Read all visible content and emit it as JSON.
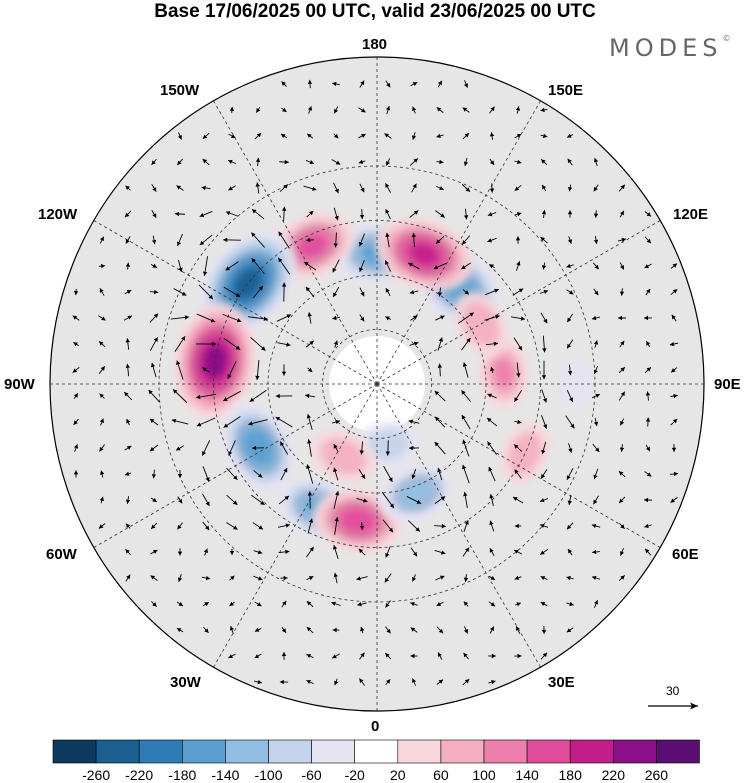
{
  "title": "Base 17/06/2025 00 UTC, valid 23/06/2025 00 UTC",
  "brand": {
    "name": "MODES",
    "mark": "©"
  },
  "longitude_labels": {
    "top": "180",
    "bottom": "0",
    "left": "90W",
    "right": "90E",
    "upper_left_1": "150W",
    "upper_left_2": "120W",
    "upper_right_1": "150E",
    "upper_right_2": "120E",
    "lower_left_1": "60W",
    "lower_left_2": "30W",
    "lower_right_1": "60E",
    "lower_right_2": "30E"
  },
  "colors": {
    "land_background": "#e6e6e6",
    "ocean": "#ffffff",
    "scale": [
      "#0c3a5e",
      "#1a5f8f",
      "#2d7cb6",
      "#5a9fd0",
      "#92bde3",
      "#c5d4ec",
      "#e6e4f2",
      "#ffffff",
      "#f8d8dc",
      "#f4b0c2",
      "#ec7fac",
      "#e04c9c",
      "#c21e8a",
      "#8b0f86",
      "#5a0e74"
    ]
  },
  "colorbar": {
    "ticks": [
      "-260",
      "-220",
      "-180",
      "-140",
      "-100",
      "-60",
      "-20",
      "20",
      "60",
      "100",
      "140",
      "180",
      "220",
      "260"
    ]
  },
  "reference_vector": {
    "value": "30"
  },
  "anomaly_centers": [
    {
      "lon": 180,
      "lat": 54,
      "value": -150
    },
    {
      "lon": 140,
      "lat": 55,
      "value": -170
    },
    {
      "lon": 160,
      "lat": 52,
      "value": 190
    },
    {
      "lon": -155,
      "lat": 48,
      "value": 150
    },
    {
      "lon": -128,
      "lat": 45,
      "value": -240
    },
    {
      "lon": -98,
      "lat": 45,
      "value": 240
    },
    {
      "lon": -62,
      "lat": 53,
      "value": -170
    },
    {
      "lon": -25,
      "lat": 52,
      "value": -140
    },
    {
      "lon": -8,
      "lat": 52,
      "value": 160
    },
    {
      "lon": 20,
      "lat": 58,
      "value": -120
    },
    {
      "lon": 10,
      "lat": 73,
      "value": -80
    },
    {
      "lon": -25,
      "lat": 68,
      "value": 90
    },
    {
      "lon": 95,
      "lat": 55,
      "value": 100
    },
    {
      "lon": 120,
      "lat": 57,
      "value": 90
    },
    {
      "lon": 65,
      "lat": 45,
      "value": 80
    },
    {
      "lon": 90,
      "lat": 35,
      "value": -40
    }
  ]
}
